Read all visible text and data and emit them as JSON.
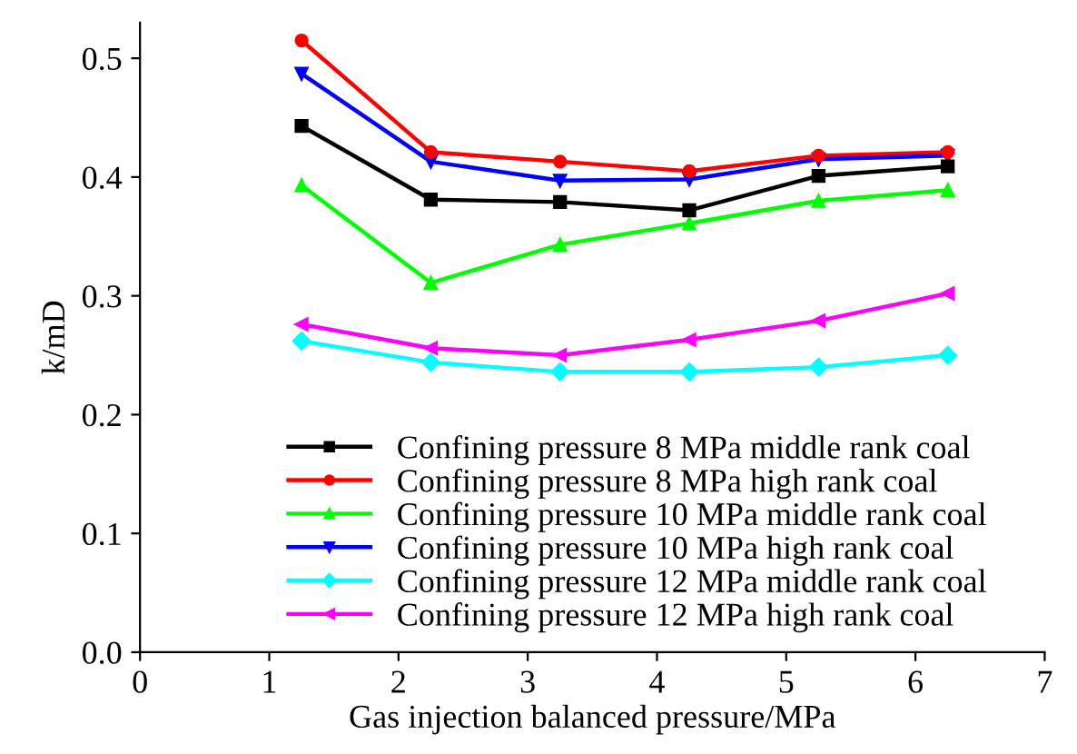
{
  "chart_data": {
    "type": "line",
    "xlabel": "Gas injection balanced pressure/MPa",
    "ylabel": "k/mD",
    "xlim": [
      0,
      7
    ],
    "xticks": [
      0,
      1,
      2,
      3,
      4,
      5,
      6,
      7
    ],
    "ylim": [
      0,
      0.53
    ],
    "yticks": [
      {
        "value": 0,
        "label": "0.0"
      },
      0.1,
      0.2,
      0.3,
      0.4,
      0.5
    ],
    "x": [
      1.25,
      2.25,
      3.25,
      4.25,
      5.25,
      6.25
    ],
    "legend": "bottom",
    "grid": false,
    "line_style": "solid",
    "series": [
      {
        "name": "Confining pressure 8 MPa middle rank coal",
        "color": "#000000",
        "marker": "square",
        "values": [
          0.443,
          0.381,
          0.379,
          0.372,
          0.401,
          0.409
        ]
      },
      {
        "name": "Confining pressure 8 MPa high rank coal",
        "color": "#ff0000",
        "marker": "circle",
        "values": [
          0.515,
          0.421,
          0.413,
          0.405,
          0.418,
          0.421
        ]
      },
      {
        "name": "Confining pressure 10 MPa middle rank coal",
        "color": "#00ff00",
        "marker": "triangle",
        "values": [
          0.393,
          0.311,
          0.343,
          0.361,
          0.38,
          0.389
        ]
      },
      {
        "name": "Confining pressure 10 MPa high rank coal",
        "color": "#0000ff",
        "marker": "triangle_down",
        "values": [
          0.487,
          0.413,
          0.397,
          0.398,
          0.415,
          0.418
        ]
      },
      {
        "name": "Confining pressure 12 MPa middle rank coal",
        "color": "#00ffff",
        "marker": "diamond",
        "values": [
          0.262,
          0.244,
          0.236,
          0.236,
          0.24,
          0.25
        ]
      },
      {
        "name": "Confining pressure 12 MPa high rank coal",
        "color": "#ff00ff",
        "marker": "triangle_left",
        "values": [
          0.276,
          0.256,
          0.25,
          0.263,
          0.279,
          0.302
        ]
      }
    ]
  }
}
